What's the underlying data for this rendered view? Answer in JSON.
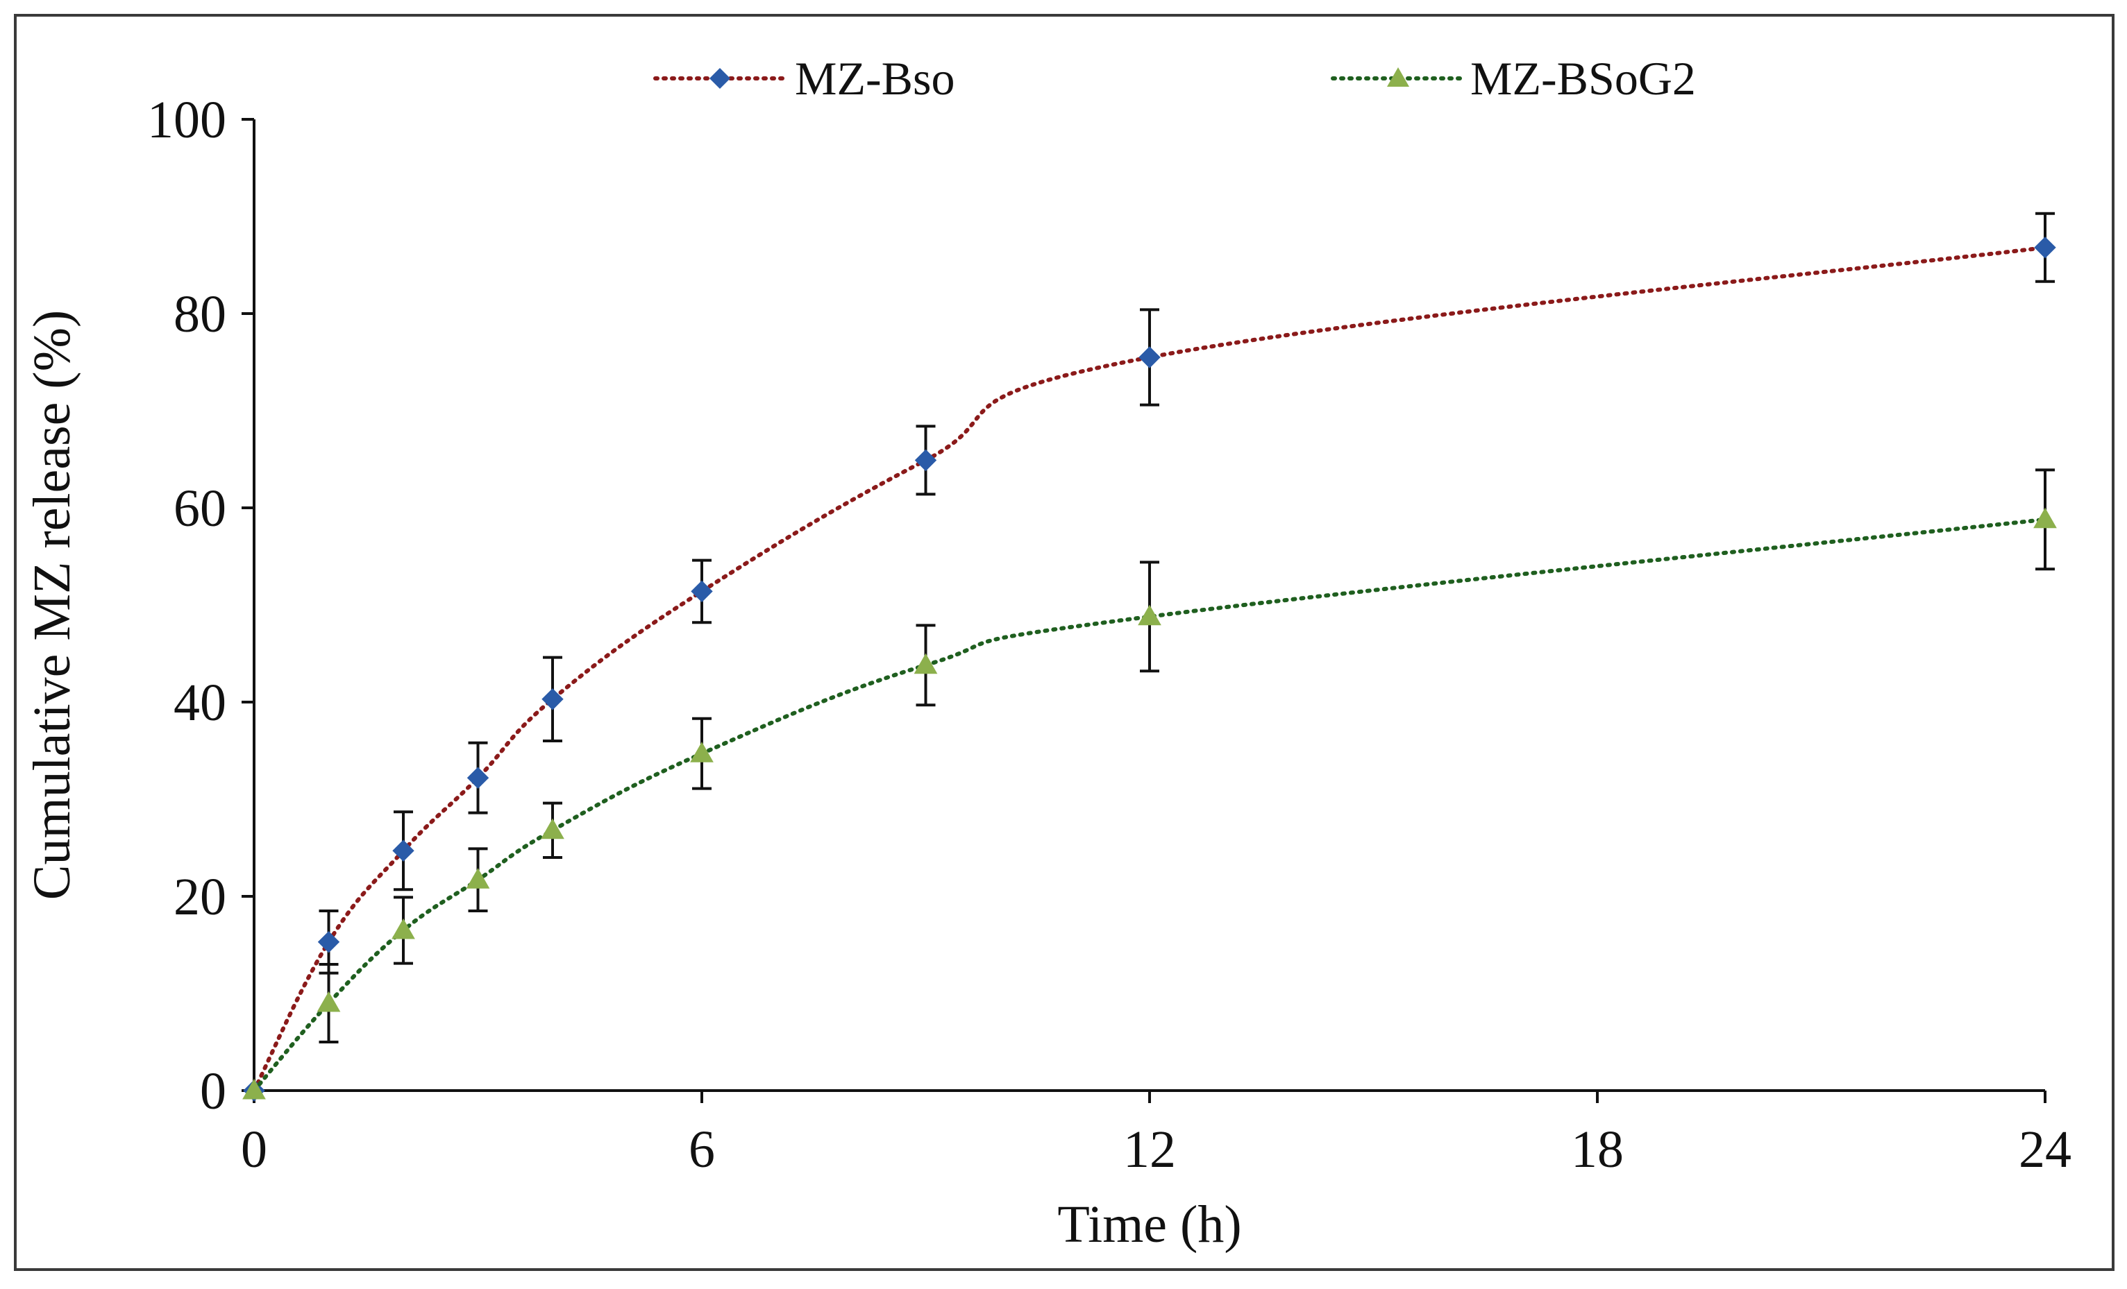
{
  "colors": {
    "series_1_line": "#8b1a1a",
    "series_1_marker": "#2a5ba8",
    "series_2_line": "#1f5f1f",
    "series_2_marker": "#8cb04c",
    "error_bar": "#111111",
    "frame": "#3a3a3a"
  },
  "chart_data": {
    "type": "line",
    "title": "",
    "xlabel": "Time (h)",
    "ylabel": "Cumulative MZ release (%)",
    "xlim": [
      0,
      24
    ],
    "ylim": [
      0,
      100
    ],
    "x_ticks": [
      "0",
      "6",
      "12",
      "18",
      "24"
    ],
    "y_ticks": [
      "0",
      "20",
      "40",
      "60",
      "80",
      "100"
    ],
    "grid": false,
    "legend_position": "top",
    "line_style": "dotted, smoothed",
    "series": [
      {
        "name": "MZ-Bso",
        "marker": "diamond",
        "x": [
          0,
          1,
          2,
          3,
          4,
          6,
          9,
          12,
          24
        ],
        "y": [
          0,
          15.3,
          24.7,
          32.2,
          40.3,
          51.4,
          64.9,
          75.5,
          86.8
        ],
        "error": [
          0,
          3.2,
          4.0,
          3.6,
          4.3,
          3.2,
          3.5,
          4.9,
          3.5
        ]
      },
      {
        "name": "MZ-BSoG2",
        "marker": "triangle",
        "x": [
          0,
          1,
          2,
          3,
          4,
          6,
          9,
          12,
          24
        ],
        "y": [
          0,
          9.0,
          16.5,
          21.7,
          26.8,
          34.7,
          43.8,
          48.8,
          58.8
        ],
        "error": [
          0,
          4.0,
          3.4,
          3.2,
          2.8,
          3.6,
          4.1,
          5.6,
          5.1
        ]
      }
    ]
  }
}
